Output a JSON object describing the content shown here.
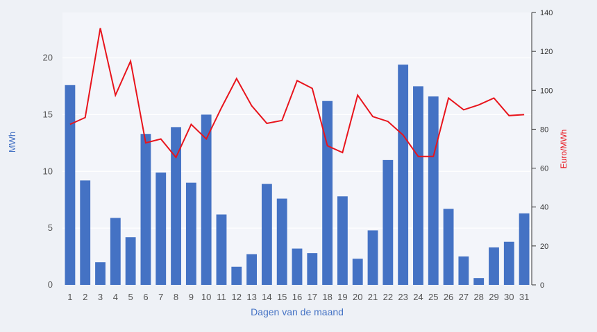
{
  "chart_data": {
    "type": "bar",
    "xlabel": "Dagen van de maand",
    "ylabel_left": "MWh",
    "ylabel_right": "Euro/MWh",
    "categories": [
      "1",
      "2",
      "3",
      "4",
      "5",
      "6",
      "7",
      "8",
      "9",
      "10",
      "11",
      "12",
      "13",
      "14",
      "15",
      "16",
      "17",
      "18",
      "19",
      "20",
      "21",
      "22",
      "23",
      "24",
      "25",
      "26",
      "27",
      "28",
      "29",
      "30",
      "31"
    ],
    "ylim_left": [
      0,
      24
    ],
    "yticks_left": [
      0,
      5,
      10,
      15,
      20
    ],
    "ylim_right": [
      0,
      140
    ],
    "yticks_right": [
      0,
      20,
      40,
      60,
      80,
      100,
      120,
      140
    ],
    "series": [
      {
        "axis": "left",
        "type": "bar",
        "color": "#4472c4",
        "values": [
          17.6,
          9.2,
          2.0,
          5.9,
          4.2,
          13.3,
          9.9,
          13.9,
          9.0,
          15.0,
          6.2,
          1.6,
          2.7,
          8.9,
          7.6,
          3.2,
          2.8,
          16.2,
          7.8,
          2.3,
          4.8,
          11.0,
          19.4,
          17.5,
          16.6,
          6.7,
          2.5,
          0.6,
          3.3,
          3.8,
          6.3
        ]
      },
      {
        "axis": "right",
        "type": "line",
        "color": "#e8141c",
        "values": [
          82.5,
          86,
          132,
          97.5,
          115,
          73,
          75,
          65.5,
          82.5,
          75,
          91,
          106,
          92,
          83,
          84.5,
          105,
          101,
          71.5,
          68,
          97.5,
          86.5,
          84,
          77,
          66,
          66,
          96,
          90,
          92.5,
          96,
          87,
          87.5
        ]
      }
    ],
    "grid": true,
    "legend": "none"
  }
}
